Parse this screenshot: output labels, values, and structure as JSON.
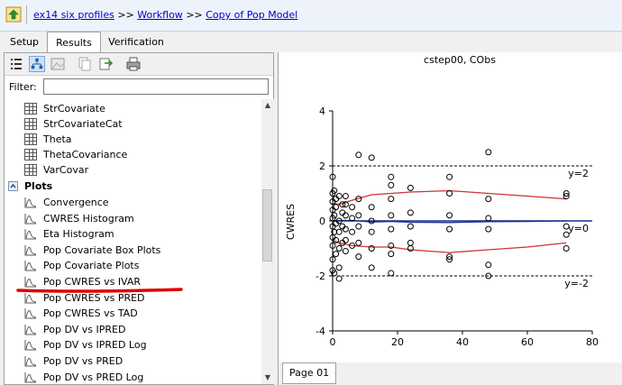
{
  "breadcrumb": {
    "items": [
      "ex14 six profiles",
      "Workflow",
      "Copy of Pop Model"
    ],
    "separator": ">>"
  },
  "tabs": {
    "setup": "Setup",
    "results": "Results",
    "verification": "Verification"
  },
  "filter": {
    "label": "Filter:",
    "value": ""
  },
  "tree": {
    "tables": [
      "StrCovariate",
      "StrCovariateCat",
      "Theta",
      "ThetaCovariance",
      "VarCovar"
    ],
    "plots_header": "Plots",
    "plots": [
      "Convergence",
      "CWRES Histogram",
      "Eta Histogram",
      "Pop Covariate Box Plots",
      "Pop Covariate Plots",
      "Pop CWRES vs IVAR",
      "Pop CWRES vs PRED",
      "Pop CWRES vs TAD",
      "Pop DV vs IPRED",
      "Pop DV vs IPRED Log",
      "Pop DV vs PRED",
      "Pop DV vs PRED Log"
    ]
  },
  "page_tab": "Page 01",
  "colors": {
    "link": "#0000cc",
    "smoother": "#cc3333",
    "zero_line": "#1a2f8a",
    "annotation": "#e00000"
  },
  "chart_data": {
    "type": "scatter",
    "title": "cstep00, CObs",
    "xlabel": "",
    "ylabel": "CWRES",
    "xlim": [
      0,
      80
    ],
    "ylim": [
      -4,
      4
    ],
    "xticks": [
      0,
      20,
      40,
      60,
      80
    ],
    "yticks": [
      -4,
      -2,
      0,
      2,
      4
    ],
    "reference_lines": [
      {
        "y": 2,
        "label": "y=2",
        "style": "dashed"
      },
      {
        "y": 0,
        "label": "y=0",
        "style": "solid"
      },
      {
        "y": -2,
        "label": "y=-2",
        "style": "dashed"
      }
    ],
    "points": [
      [
        0,
        1.6
      ],
      [
        0,
        1.0
      ],
      [
        0,
        0.7
      ],
      [
        0,
        0.4
      ],
      [
        0,
        0.1
      ],
      [
        0,
        -0.2
      ],
      [
        0,
        -0.6
      ],
      [
        0,
        -0.9
      ],
      [
        0,
        -1.4
      ],
      [
        0,
        -1.8
      ],
      [
        0.5,
        1.1
      ],
      [
        0.5,
        0.2
      ],
      [
        0.5,
        -0.4
      ],
      [
        0.5,
        -1.9
      ],
      [
        1,
        0.8
      ],
      [
        1,
        0.5
      ],
      [
        1,
        -0.1
      ],
      [
        1,
        -0.7
      ],
      [
        1,
        -1.2
      ],
      [
        2,
        0.9
      ],
      [
        2,
        0.0
      ],
      [
        2,
        -0.4
      ],
      [
        2,
        -1.0
      ],
      [
        2,
        -1.7
      ],
      [
        2,
        -2.1
      ],
      [
        3,
        0.6
      ],
      [
        3,
        0.3
      ],
      [
        3,
        -0.2
      ],
      [
        3,
        -0.8
      ],
      [
        4,
        0.9
      ],
      [
        4,
        0.6
      ],
      [
        4,
        0.2
      ],
      [
        4,
        -0.3
      ],
      [
        4,
        -0.7
      ],
      [
        4,
        -1.1
      ],
      [
        6,
        0.5
      ],
      [
        6,
        0.1
      ],
      [
        6,
        -0.4
      ],
      [
        6,
        -0.9
      ],
      [
        8,
        2.4
      ],
      [
        8,
        0.8
      ],
      [
        8,
        0.2
      ],
      [
        8,
        -0.2
      ],
      [
        8,
        -0.8
      ],
      [
        8,
        -1.3
      ],
      [
        12,
        2.3
      ],
      [
        12,
        0.5
      ],
      [
        12,
        0.0
      ],
      [
        12,
        -0.4
      ],
      [
        12,
        -1.0
      ],
      [
        12,
        -1.7
      ],
      [
        18,
        1.6
      ],
      [
        18,
        1.3
      ],
      [
        18,
        0.8
      ],
      [
        18,
        0.2
      ],
      [
        18,
        -0.3
      ],
      [
        18,
        -0.9
      ],
      [
        18,
        -1.2
      ],
      [
        18,
        -1.9
      ],
      [
        24,
        1.2
      ],
      [
        24,
        0.3
      ],
      [
        24,
        -0.2
      ],
      [
        24,
        -0.8
      ],
      [
        24,
        -1.0
      ],
      [
        36,
        1.6
      ],
      [
        36,
        1.0
      ],
      [
        36,
        0.2
      ],
      [
        36,
        -0.3
      ],
      [
        36,
        -1.3
      ],
      [
        36,
        -1.4
      ],
      [
        48,
        2.5
      ],
      [
        48,
        0.8
      ],
      [
        48,
        0.1
      ],
      [
        48,
        -0.3
      ],
      [
        48,
        -1.6
      ],
      [
        48,
        -2.0
      ],
      [
        72,
        1.0
      ],
      [
        72,
        0.9
      ],
      [
        72,
        -0.2
      ],
      [
        72,
        -0.5
      ],
      [
        72,
        -1.0
      ]
    ],
    "smoothers": [
      {
        "name": "upper",
        "x": [
          0,
          2,
          6,
          12,
          18,
          24,
          36,
          48,
          60,
          72
        ],
        "y": [
          0.65,
          0.6,
          0.75,
          0.95,
          1.0,
          1.05,
          1.1,
          1.0,
          0.9,
          0.8
        ]
      },
      {
        "name": "center",
        "x": [
          0,
          4,
          8,
          12,
          18,
          24,
          36,
          48,
          60,
          72
        ],
        "y": [
          0.0,
          0.02,
          0.0,
          -0.04,
          -0.02,
          -0.05,
          -0.06,
          -0.03,
          -0.02,
          0.0
        ]
      },
      {
        "name": "lower",
        "x": [
          0,
          2,
          6,
          12,
          18,
          24,
          36,
          48,
          60,
          72
        ],
        "y": [
          -0.7,
          -0.8,
          -0.9,
          -0.95,
          -0.95,
          -1.05,
          -1.15,
          -1.05,
          -0.95,
          -0.8
        ]
      }
    ],
    "grid": false,
    "legend": "none"
  }
}
